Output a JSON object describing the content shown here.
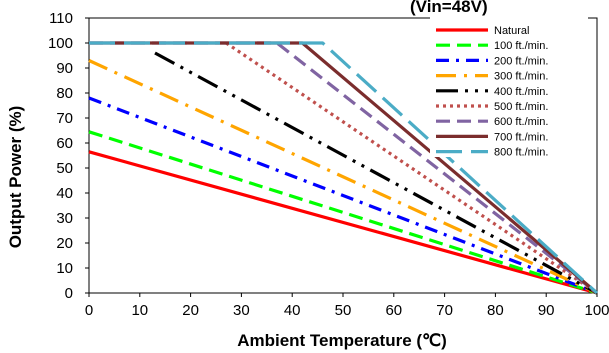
{
  "chart_data": {
    "type": "line",
    "title": "(Vin=48V)",
    "xlabel": "Ambient Temperature (℃)",
    "ylabel": "Output Power (%)",
    "xlim": [
      0,
      100
    ],
    "ylim": [
      0,
      110
    ],
    "xticks": [
      "0",
      "10",
      "20",
      "30",
      "40",
      "50",
      "60",
      "70",
      "80",
      "90",
      "100"
    ],
    "yticks": [
      "0",
      "10",
      "20",
      "30",
      "40",
      "50",
      "60",
      "70",
      "80",
      "90",
      "100",
      "110"
    ],
    "grid": false,
    "legend_position": "top-right",
    "series": [
      {
        "name": "Natural",
        "color": "#ff0000",
        "dash": "solid",
        "points": [
          [
            0,
            56.5
          ],
          [
            100,
            0
          ]
        ]
      },
      {
        "name": "100 ft./min.",
        "color": "#00ff00",
        "dash": "dash",
        "points": [
          [
            0,
            64.5
          ],
          [
            100,
            0
          ]
        ]
      },
      {
        "name": "200 ft./min.",
        "color": "#0000ff",
        "dash": "dashdot",
        "points": [
          [
            0,
            78
          ],
          [
            100,
            0
          ]
        ]
      },
      {
        "name": "300 ft./min.",
        "color": "#ffa500",
        "dash": "longdashdot",
        "points": [
          [
            0,
            93
          ],
          [
            100,
            0
          ]
        ]
      },
      {
        "name": "400 ft./min.",
        "color": "#000000",
        "dash": "longdashdotdot",
        "points": [
          [
            13,
            96
          ],
          [
            100,
            0
          ]
        ]
      },
      {
        "name": "500 ft./min.",
        "color": "#c0504d",
        "dash": "dot",
        "points": [
          [
            27,
            100
          ],
          [
            100,
            0
          ]
        ]
      },
      {
        "name": "600 ft./min.",
        "color": "#8064a2",
        "dash": "dash",
        "points": [
          [
            0,
            100
          ],
          [
            37,
            100
          ],
          [
            100,
            0
          ]
        ]
      },
      {
        "name": "700 ft./min.",
        "color": "#7b2d2d",
        "dash": "solid",
        "points": [
          [
            0,
            100
          ],
          [
            42,
            100
          ],
          [
            100,
            0
          ]
        ]
      },
      {
        "name": "800 ft./min.",
        "color": "#4bacc6",
        "dash": "longdash",
        "points": [
          [
            0,
            100
          ],
          [
            46,
            100
          ],
          [
            100,
            0
          ]
        ]
      }
    ]
  }
}
